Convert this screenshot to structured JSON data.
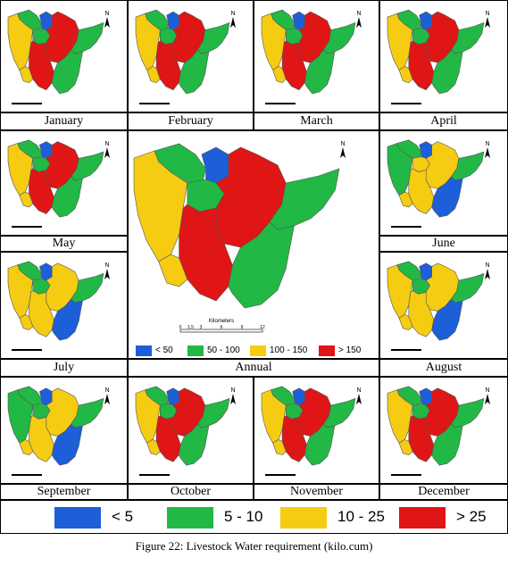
{
  "maps": {
    "monthly_legend": [
      {
        "label": "< 5",
        "color": "#1c5fd8"
      },
      {
        "label": "5 - 10",
        "color": "#22b845"
      },
      {
        "label": "10 - 25",
        "color": "#f5cc12"
      },
      {
        "label": "> 25",
        "color": "#e01515"
      }
    ],
    "annual": {
      "label": "Annual",
      "scale_label": "Kilometers",
      "scale_ticks": [
        "0",
        "1.5",
        "3",
        "6",
        "9",
        "12"
      ],
      "legend": [
        {
          "label": "< 50",
          "color": "#1c5fd8"
        },
        {
          "label": "50 - 100",
          "color": "#22b845"
        },
        {
          "label": "100 - 150",
          "color": "#f5cc12"
        },
        {
          "label": "> 150",
          "color": "#e01515"
        }
      ]
    },
    "months": [
      {
        "label": "January",
        "class": [
          "green",
          "yellow",
          "blue",
          "green",
          "red",
          "red",
          "yellow",
          "green",
          "green"
        ]
      },
      {
        "label": "February",
        "class": [
          "green",
          "yellow",
          "blue",
          "green",
          "red",
          "red",
          "yellow",
          "green",
          "green"
        ]
      },
      {
        "label": "March",
        "class": [
          "green",
          "yellow",
          "blue",
          "green",
          "red",
          "red",
          "yellow",
          "green",
          "green"
        ]
      },
      {
        "label": "April",
        "class": [
          "green",
          "yellow",
          "blue",
          "green",
          "red",
          "red",
          "yellow",
          "green",
          "green"
        ]
      },
      {
        "label": "May",
        "class": [
          "green",
          "yellow",
          "blue",
          "green",
          "red",
          "red",
          "yellow",
          "green",
          "green"
        ]
      },
      {
        "label": "June",
        "class": [
          "green",
          "green",
          "blue",
          "yellow",
          "yellow",
          "yellow",
          "yellow",
          "green",
          "blue"
        ]
      },
      {
        "label": "July",
        "class": [
          "green",
          "yellow",
          "blue",
          "green",
          "yellow",
          "yellow",
          "yellow",
          "green",
          "blue"
        ]
      },
      {
        "label": "August",
        "class": [
          "green",
          "yellow",
          "blue",
          "green",
          "yellow",
          "yellow",
          "yellow",
          "green",
          "blue"
        ]
      },
      {
        "label": "September",
        "class": [
          "green",
          "green",
          "blue",
          "green",
          "yellow",
          "yellow",
          "yellow",
          "green",
          "blue"
        ]
      },
      {
        "label": "October",
        "class": [
          "green",
          "yellow",
          "blue",
          "green",
          "red",
          "red",
          "yellow",
          "green",
          "green"
        ]
      },
      {
        "label": "November",
        "class": [
          "green",
          "yellow",
          "blue",
          "green",
          "red",
          "red",
          "yellow",
          "green",
          "green"
        ]
      },
      {
        "label": "December",
        "class": [
          "green",
          "yellow",
          "blue",
          "green",
          "red",
          "red",
          "yellow",
          "green",
          "green"
        ]
      }
    ],
    "north_label": "N"
  },
  "caption": "Figure 22: Livestock Water requirement (kilo.cum)",
  "colors": {
    "blue": "#1c5fd8",
    "green": "#22b845",
    "yellow": "#f5cc12",
    "red": "#e01515"
  }
}
